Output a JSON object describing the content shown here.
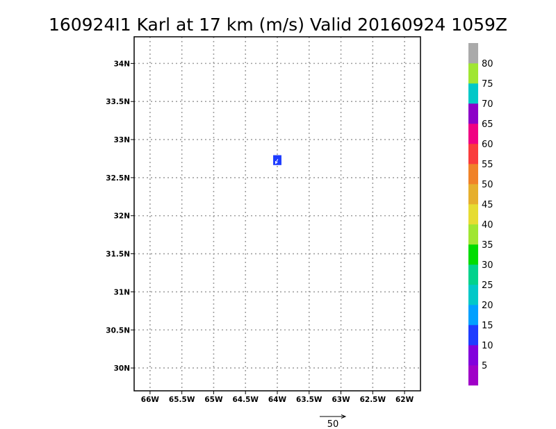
{
  "chart_data": {
    "type": "heatmap",
    "title": "160924I1 Karl at 17 km (m/s) Valid 20160924 1059Z",
    "xlabel": "",
    "ylabel": "",
    "x_ticks": [
      {
        "value": -66,
        "label": "66W"
      },
      {
        "value": -65.5,
        "label": "65.5W"
      },
      {
        "value": -65,
        "label": "65W"
      },
      {
        "value": -64.5,
        "label": "64.5W"
      },
      {
        "value": -64,
        "label": "64W"
      },
      {
        "value": -63.5,
        "label": "63.5W"
      },
      {
        "value": -63,
        "label": "63W"
      },
      {
        "value": -62.5,
        "label": "62.5W"
      },
      {
        "value": -62,
        "label": "62W"
      }
    ],
    "y_ticks": [
      {
        "value": 30,
        "label": "30N"
      },
      {
        "value": 30.5,
        "label": "30.5N"
      },
      {
        "value": 31,
        "label": "31N"
      },
      {
        "value": 31.5,
        "label": "31.5N"
      },
      {
        "value": 32,
        "label": "32N"
      },
      {
        "value": 32.5,
        "label": "32.5N"
      },
      {
        "value": 33,
        "label": "33N"
      },
      {
        "value": 33.5,
        "label": "33.5N"
      },
      {
        "value": 34,
        "label": "34N"
      }
    ],
    "xlim": [
      -66.25,
      -61.75
    ],
    "ylim": [
      29.7,
      34.35
    ],
    "grid": true,
    "cells": [
      {
        "lon": -64.0,
        "lat": 32.73,
        "dlon": 0.13,
        "dlat": 0.13,
        "value": 12,
        "vector": {
          "u": -3,
          "v": -6
        }
      }
    ],
    "colorbar": {
      "boundaries": [
        0,
        5,
        10,
        15,
        20,
        25,
        30,
        35,
        40,
        45,
        50,
        55,
        60,
        65,
        70,
        75,
        80,
        85
      ],
      "labels": [
        "5",
        "10",
        "15",
        "20",
        "25",
        "30",
        "35",
        "40",
        "45",
        "50",
        "55",
        "60",
        "65",
        "70",
        "75",
        "80"
      ],
      "colors": [
        "#a000c8",
        "#8200dc",
        "#1e3cff",
        "#00a0ff",
        "#00c8c8",
        "#00d28c",
        "#00dc00",
        "#a0e632",
        "#e6dc32",
        "#e6af2d",
        "#f08228",
        "#fa3c3c",
        "#f00082",
        "#8c00c8",
        "#00c8c8",
        "#a0e632",
        "#aaaaaa"
      ]
    },
    "reference_vector": {
      "label": "50"
    }
  }
}
